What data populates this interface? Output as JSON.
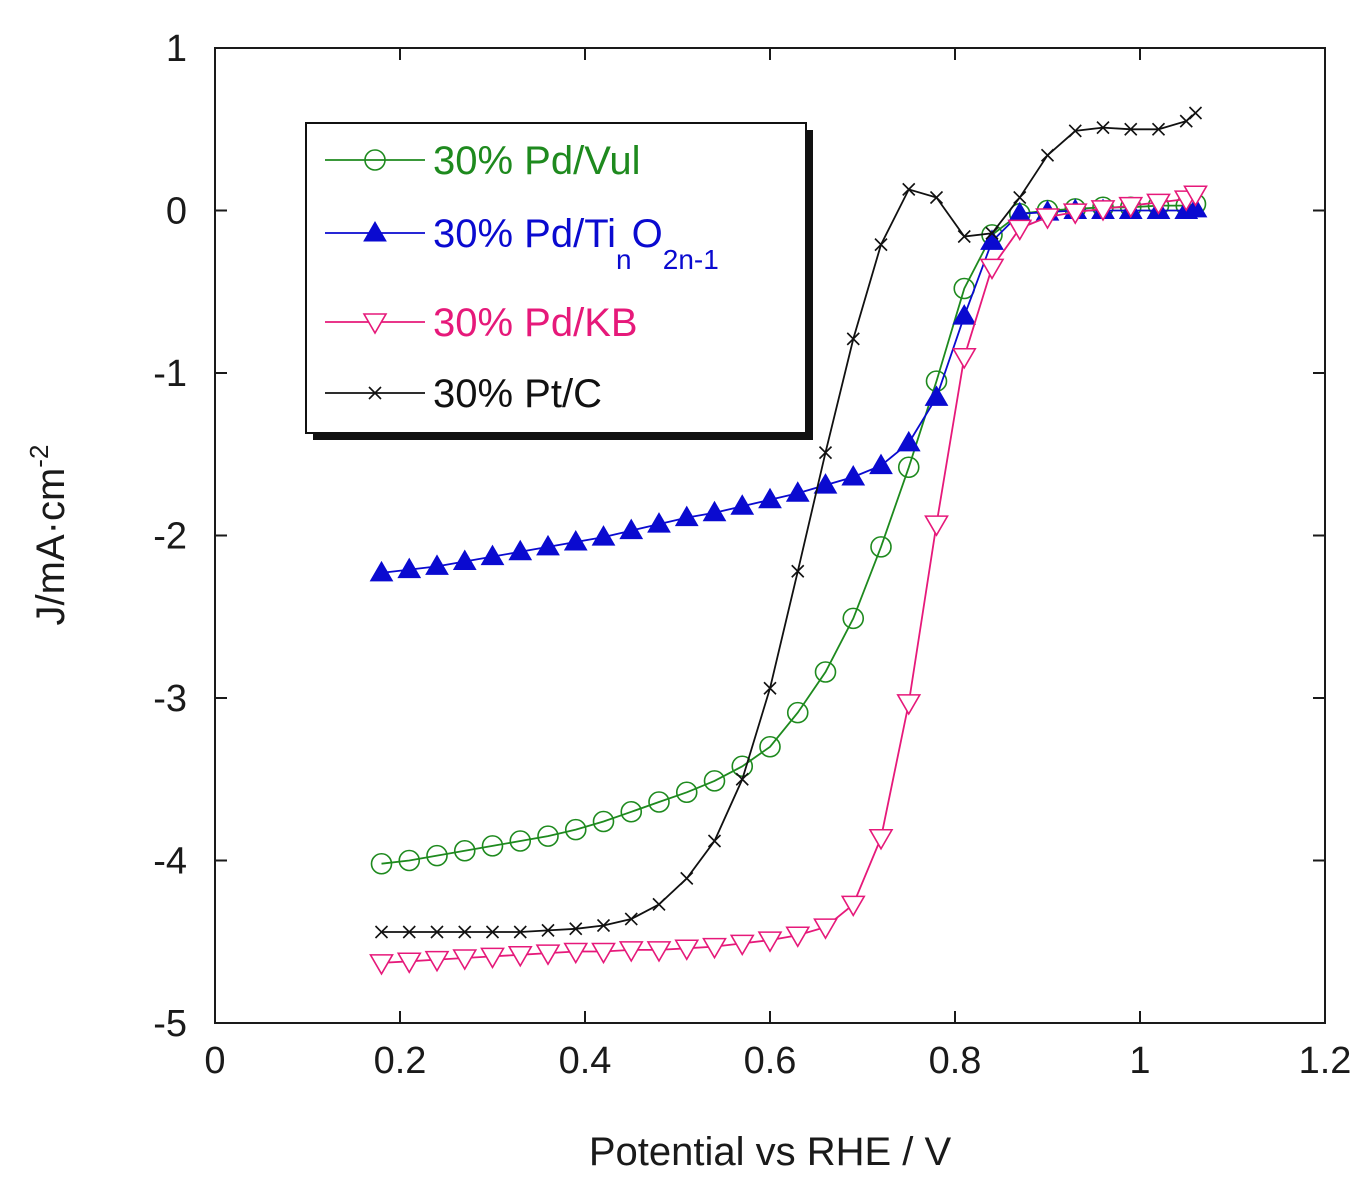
{
  "chart_data": {
    "type": "line",
    "title": "",
    "xlabel": "Potential vs RHE / V",
    "ylabel": "J/mA·cm",
    "ylabel_sup": "-2",
    "xlim": [
      0,
      1.2
    ],
    "ylim": [
      -5,
      1
    ],
    "xticks": [
      0,
      0.2,
      0.4,
      0.6,
      0.8,
      1,
      1.2
    ],
    "xtick_labels": [
      "0",
      "0.2",
      "0.4",
      "0.6",
      "0.8",
      "1",
      "1.2"
    ],
    "yticks": [
      1,
      0,
      -1,
      -2,
      -3,
      -4,
      -5
    ],
    "ytick_labels": [
      "1",
      "0",
      "-1",
      "-2",
      "-3",
      "-4",
      "-5"
    ],
    "grid": false,
    "legend_position": "top-left",
    "series": [
      {
        "name": "30% Pd/Vul",
        "label_parts": [
          "30% Pd/Vul"
        ],
        "color": "#1e8a1e",
        "marker": "circle",
        "x": [
          0.18,
          0.21,
          0.24,
          0.27,
          0.3,
          0.33,
          0.36,
          0.39,
          0.42,
          0.45,
          0.48,
          0.51,
          0.54,
          0.57,
          0.6,
          0.63,
          0.66,
          0.69,
          0.72,
          0.75,
          0.78,
          0.81,
          0.84,
          0.87,
          0.9,
          0.93,
          0.96,
          0.99,
          1.02,
          1.05,
          1.06
        ],
        "y": [
          -4.02,
          -4.0,
          -3.97,
          -3.94,
          -3.91,
          -3.88,
          -3.85,
          -3.81,
          -3.76,
          -3.7,
          -3.64,
          -3.58,
          -3.51,
          -3.42,
          -3.3,
          -3.09,
          -2.84,
          -2.51,
          -2.07,
          -1.58,
          -1.05,
          -0.48,
          -0.15,
          -0.02,
          0.0,
          0.01,
          0.02,
          0.02,
          0.03,
          0.03,
          0.04
        ]
      },
      {
        "name": "30% Pd/TinO2n-1",
        "label_parts": [
          "30% Pd/Ti",
          "n",
          "O",
          "2n-1"
        ],
        "color": "#0a0ad0",
        "marker": "triangle-up-filled",
        "x": [
          0.18,
          0.21,
          0.24,
          0.27,
          0.3,
          0.33,
          0.36,
          0.39,
          0.42,
          0.45,
          0.48,
          0.51,
          0.54,
          0.57,
          0.6,
          0.63,
          0.66,
          0.69,
          0.72,
          0.75,
          0.78,
          0.81,
          0.84,
          0.87,
          0.9,
          0.93,
          0.96,
          0.99,
          1.02,
          1.05,
          1.06
        ],
        "y": [
          -2.23,
          -2.21,
          -2.19,
          -2.16,
          -2.13,
          -2.1,
          -2.07,
          -2.04,
          -2.01,
          -1.97,
          -1.93,
          -1.89,
          -1.86,
          -1.82,
          -1.78,
          -1.74,
          -1.69,
          -1.64,
          -1.57,
          -1.43,
          -1.15,
          -0.65,
          -0.19,
          -0.02,
          -0.01,
          0.0,
          0.0,
          0.0,
          0.0,
          0.0,
          0.01
        ]
      },
      {
        "name": "30% Pd/KB",
        "label_parts": [
          "30% Pd/KB"
        ],
        "color": "#e6197a",
        "marker": "triangle-down",
        "x": [
          0.18,
          0.21,
          0.24,
          0.27,
          0.3,
          0.33,
          0.36,
          0.39,
          0.42,
          0.45,
          0.48,
          0.51,
          0.54,
          0.57,
          0.6,
          0.63,
          0.66,
          0.69,
          0.72,
          0.75,
          0.78,
          0.81,
          0.84,
          0.87,
          0.9,
          0.93,
          0.96,
          0.99,
          1.02,
          1.05,
          1.06
        ],
        "y": [
          -4.63,
          -4.62,
          -4.61,
          -4.6,
          -4.59,
          -4.58,
          -4.57,
          -4.56,
          -4.56,
          -4.55,
          -4.55,
          -4.54,
          -4.53,
          -4.51,
          -4.49,
          -4.46,
          -4.41,
          -4.27,
          -3.86,
          -3.03,
          -1.93,
          -0.9,
          -0.35,
          -0.11,
          -0.04,
          -0.01,
          0.01,
          0.03,
          0.05,
          0.07,
          0.1
        ]
      },
      {
        "name": "30% Pt/C",
        "label_parts": [
          "30% Pt/C"
        ],
        "color": "#111111",
        "marker": "x",
        "x": [
          0.18,
          0.21,
          0.24,
          0.27,
          0.3,
          0.33,
          0.36,
          0.39,
          0.42,
          0.45,
          0.48,
          0.51,
          0.54,
          0.57,
          0.6,
          0.63,
          0.66,
          0.69,
          0.72,
          0.75,
          0.78,
          0.81,
          0.84,
          0.87,
          0.9,
          0.93,
          0.96,
          0.99,
          1.02,
          1.05,
          1.06
        ],
        "y": [
          -4.44,
          -4.44,
          -4.44,
          -4.44,
          -4.44,
          -4.44,
          -4.43,
          -4.42,
          -4.4,
          -4.36,
          -4.27,
          -4.11,
          -3.88,
          -3.5,
          -2.94,
          -2.22,
          -1.49,
          -0.79,
          -0.21,
          0.13,
          0.08,
          -0.16,
          -0.14,
          0.08,
          0.34,
          0.49,
          0.51,
          0.5,
          0.5,
          0.55,
          0.6
        ]
      }
    ]
  }
}
